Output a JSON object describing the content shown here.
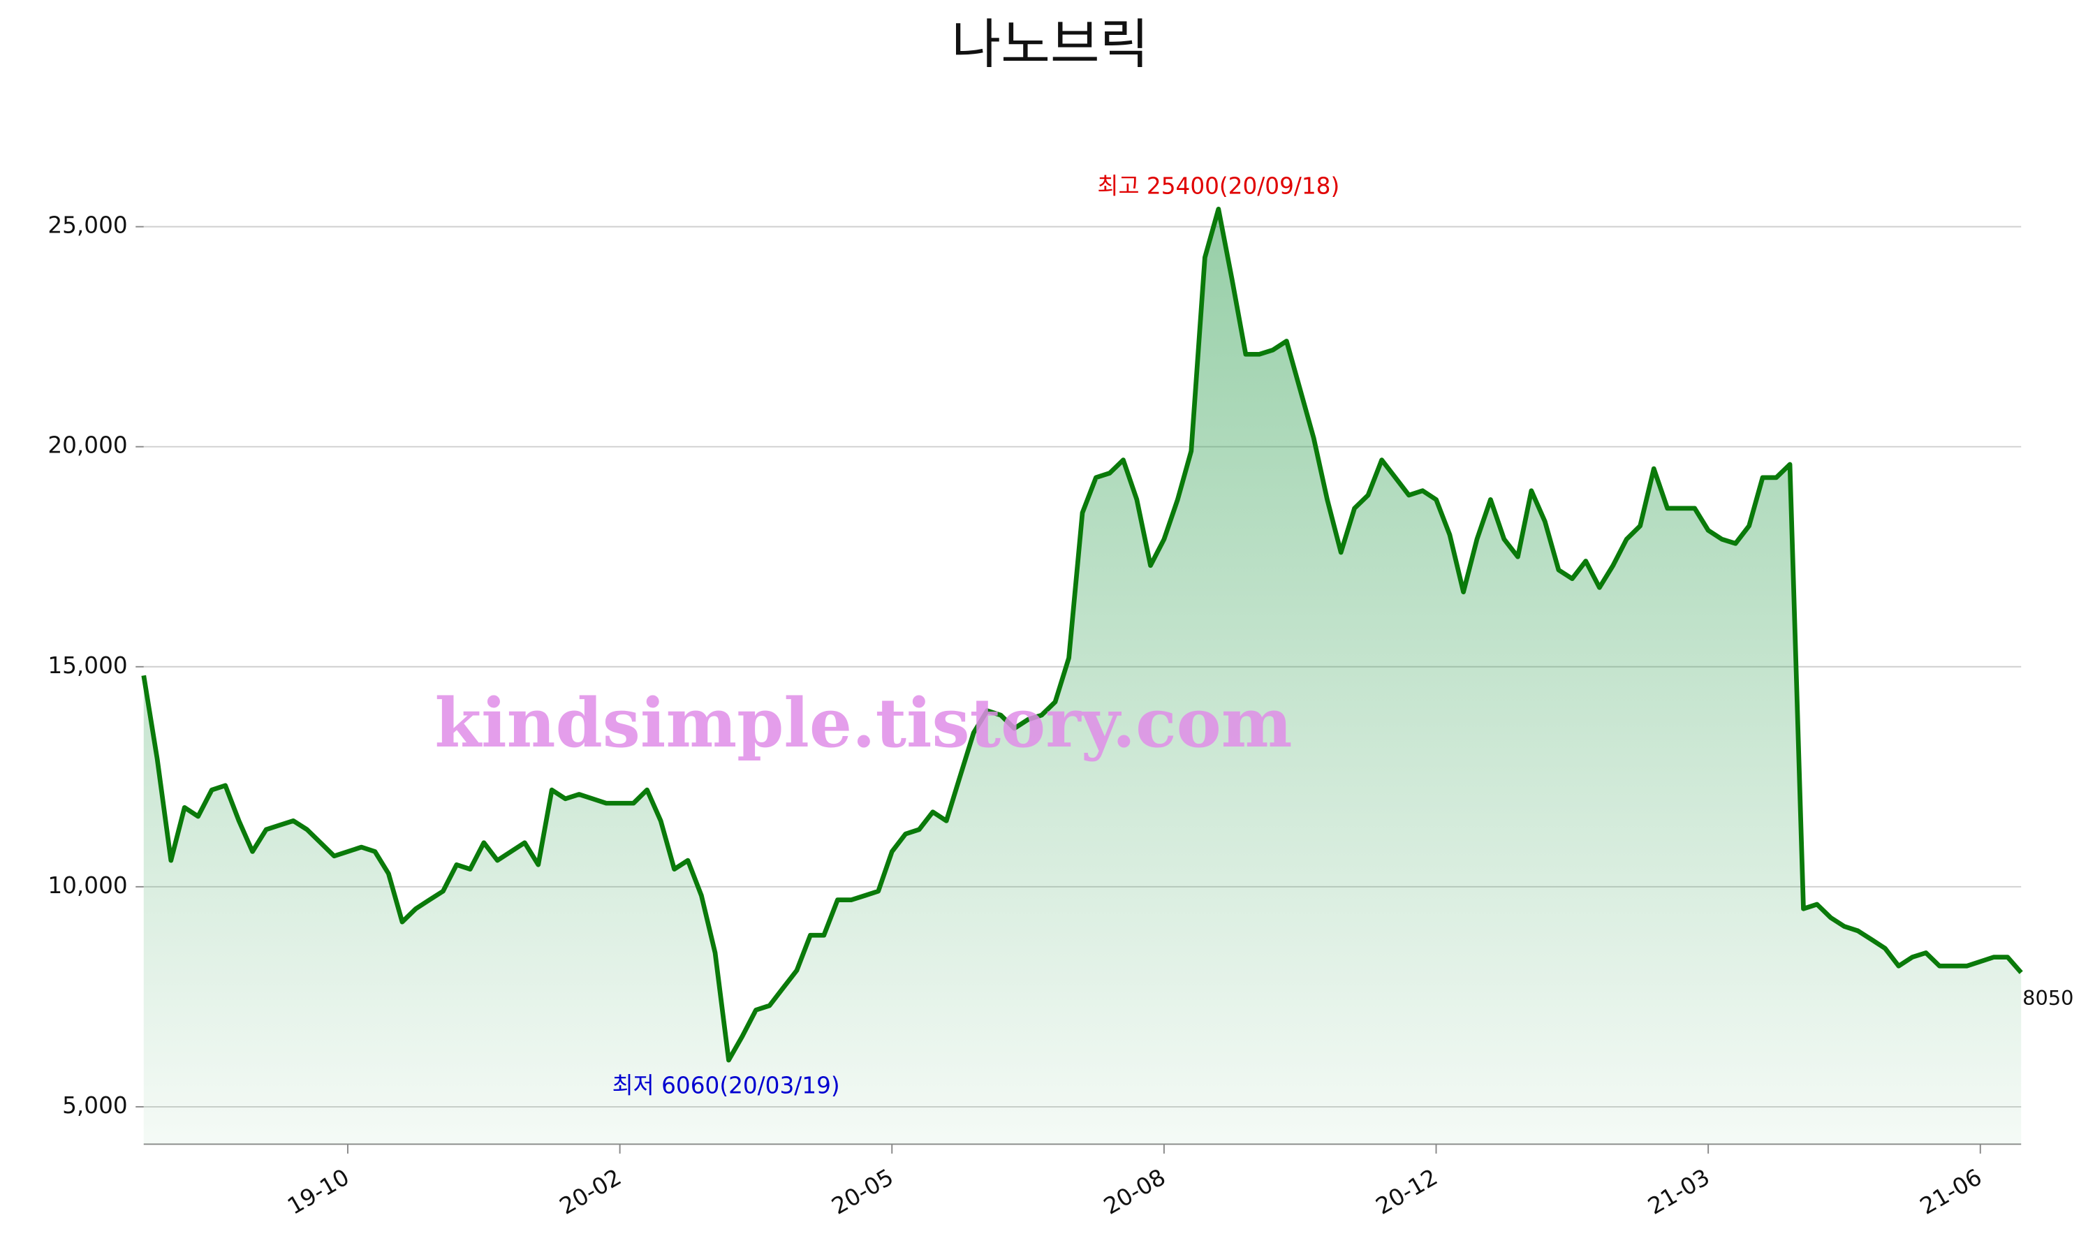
{
  "chart_data": {
    "type": "line",
    "title": "나노브릭",
    "watermark": "kindsimple.tistory.com",
    "color": "#0a7a0a",
    "fill_color": "#2e9e4f",
    "grid": true,
    "categories": [
      null,
      null,
      null,
      null,
      null,
      null,
      null,
      null,
      null,
      null,
      null,
      null,
      null,
      null,
      null,
      "19-10",
      null,
      null,
      null,
      null,
      null,
      null,
      null,
      null,
      null,
      null,
      null,
      null,
      null,
      null,
      null,
      null,
      null,
      null,
      null,
      "20-02",
      null,
      null,
      null,
      null,
      null,
      null,
      null,
      null,
      null,
      null,
      null,
      null,
      null,
      null,
      null,
      null,
      null,
      null,
      null,
      "20-05",
      null,
      null,
      null,
      null,
      null,
      null,
      null,
      null,
      null,
      null,
      null,
      null,
      null,
      null,
      null,
      null,
      null,
      null,
      null,
      "20-08",
      null,
      null,
      null,
      null,
      null,
      null,
      null,
      null,
      null,
      null,
      null,
      null,
      null,
      null,
      null,
      null,
      null,
      null,
      null,
      "20-12",
      null,
      null,
      null,
      null,
      null,
      null,
      null,
      null,
      null,
      null,
      null,
      null,
      null,
      null,
      null,
      null,
      null,
      null,
      null,
      "21-03",
      null,
      null,
      null,
      null,
      null,
      null,
      null,
      null,
      null,
      null,
      null,
      null,
      null,
      null,
      null,
      null,
      null,
      null,
      null,
      "21-06",
      null,
      null,
      null
    ],
    "values": [
      14800,
      12900,
      10600,
      11800,
      11600,
      12200,
      12300,
      11500,
      10800,
      11300,
      11400,
      11500,
      11300,
      11000,
      10700,
      10800,
      10900,
      10800,
      10300,
      9200,
      9500,
      9700,
      9900,
      10500,
      10400,
      11000,
      10600,
      10800,
      11000,
      10500,
      12200,
      12000,
      12100,
      12000,
      11900,
      11900,
      11900,
      12200,
      11500,
      10400,
      10600,
      9800,
      8500,
      6060,
      6600,
      7200,
      7300,
      7700,
      8100,
      8900,
      8900,
      9700,
      9700,
      9800,
      9900,
      10800,
      11200,
      11300,
      11700,
      11500,
      12500,
      13500,
      14000,
      13900,
      13600,
      13800,
      13900,
      14200,
      15200,
      18500,
      19300,
      19400,
      19700,
      18800,
      17300,
      17900,
      18800,
      19900,
      24300,
      25400,
      23800,
      22100,
      22100,
      22200,
      22400,
      21300,
      20200,
      18800,
      17600,
      18600,
      18900,
      19700,
      19300,
      18900,
      19000,
      18800,
      18000,
      16700,
      17900,
      18800,
      17900,
      17500,
      19000,
      18300,
      17200,
      17000,
      17400,
      16800,
      17300,
      17900,
      18200,
      19500,
      18600,
      18600,
      18600,
      18100,
      17900,
      17800,
      18200,
      19300,
      19300,
      19600,
      9500,
      9600,
      9300,
      9100,
      9000,
      8800,
      8600,
      8200,
      8400,
      8500,
      8200,
      8200,
      8200,
      8300,
      8400,
      8400,
      8050
    ],
    "ylim": [
      4150,
      27100
    ],
    "yticks": [
      {
        "value": 5000,
        "label": "5,000"
      },
      {
        "value": 10000,
        "label": "10,000"
      },
      {
        "value": 15000,
        "label": "15,000"
      },
      {
        "value": 20000,
        "label": "20,000"
      },
      {
        "value": 25000,
        "label": "25,000"
      }
    ],
    "annotations": [
      {
        "text": "최고 25400(20/09/18)",
        "color": "#e00000",
        "anchor": "max"
      },
      {
        "text": "최저 6060(20/03/19)",
        "color": "#0000d0",
        "anchor": "min"
      }
    ]
  }
}
